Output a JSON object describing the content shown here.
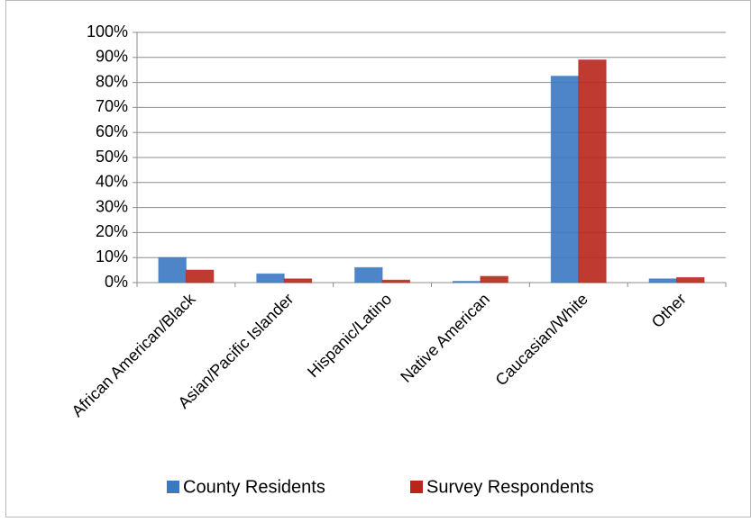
{
  "chart_data": {
    "type": "bar",
    "categories": [
      "African American/Black",
      "Asian/Pacific Islander",
      "Hispanic/Latino",
      "Native American",
      "Caucasian/White",
      "Other"
    ],
    "series": [
      {
        "name": "County Residents",
        "color": "#3a78c2",
        "values": [
          10,
          3.5,
          6,
          0.5,
          82.5,
          1.5
        ]
      },
      {
        "name": "Survey Respondents",
        "color": "#b8261b",
        "values": [
          5,
          1.5,
          1,
          2.5,
          89,
          2
        ]
      }
    ],
    "ylim": [
      0,
      100
    ],
    "yticks": [
      {
        "value": 0,
        "label": "0%"
      },
      {
        "value": 10,
        "label": "10%"
      },
      {
        "value": 20,
        "label": "20%"
      },
      {
        "value": 30,
        "label": "30%"
      },
      {
        "value": 40,
        "label": "40%"
      },
      {
        "value": 50,
        "label": "50%"
      },
      {
        "value": 60,
        "label": "60%"
      },
      {
        "value": 70,
        "label": "70%"
      },
      {
        "value": 80,
        "label": "80%"
      },
      {
        "value": 90,
        "label": "90%"
      },
      {
        "value": 100,
        "label": "100%"
      }
    ],
    "grid": true,
    "legend": "bottom"
  }
}
